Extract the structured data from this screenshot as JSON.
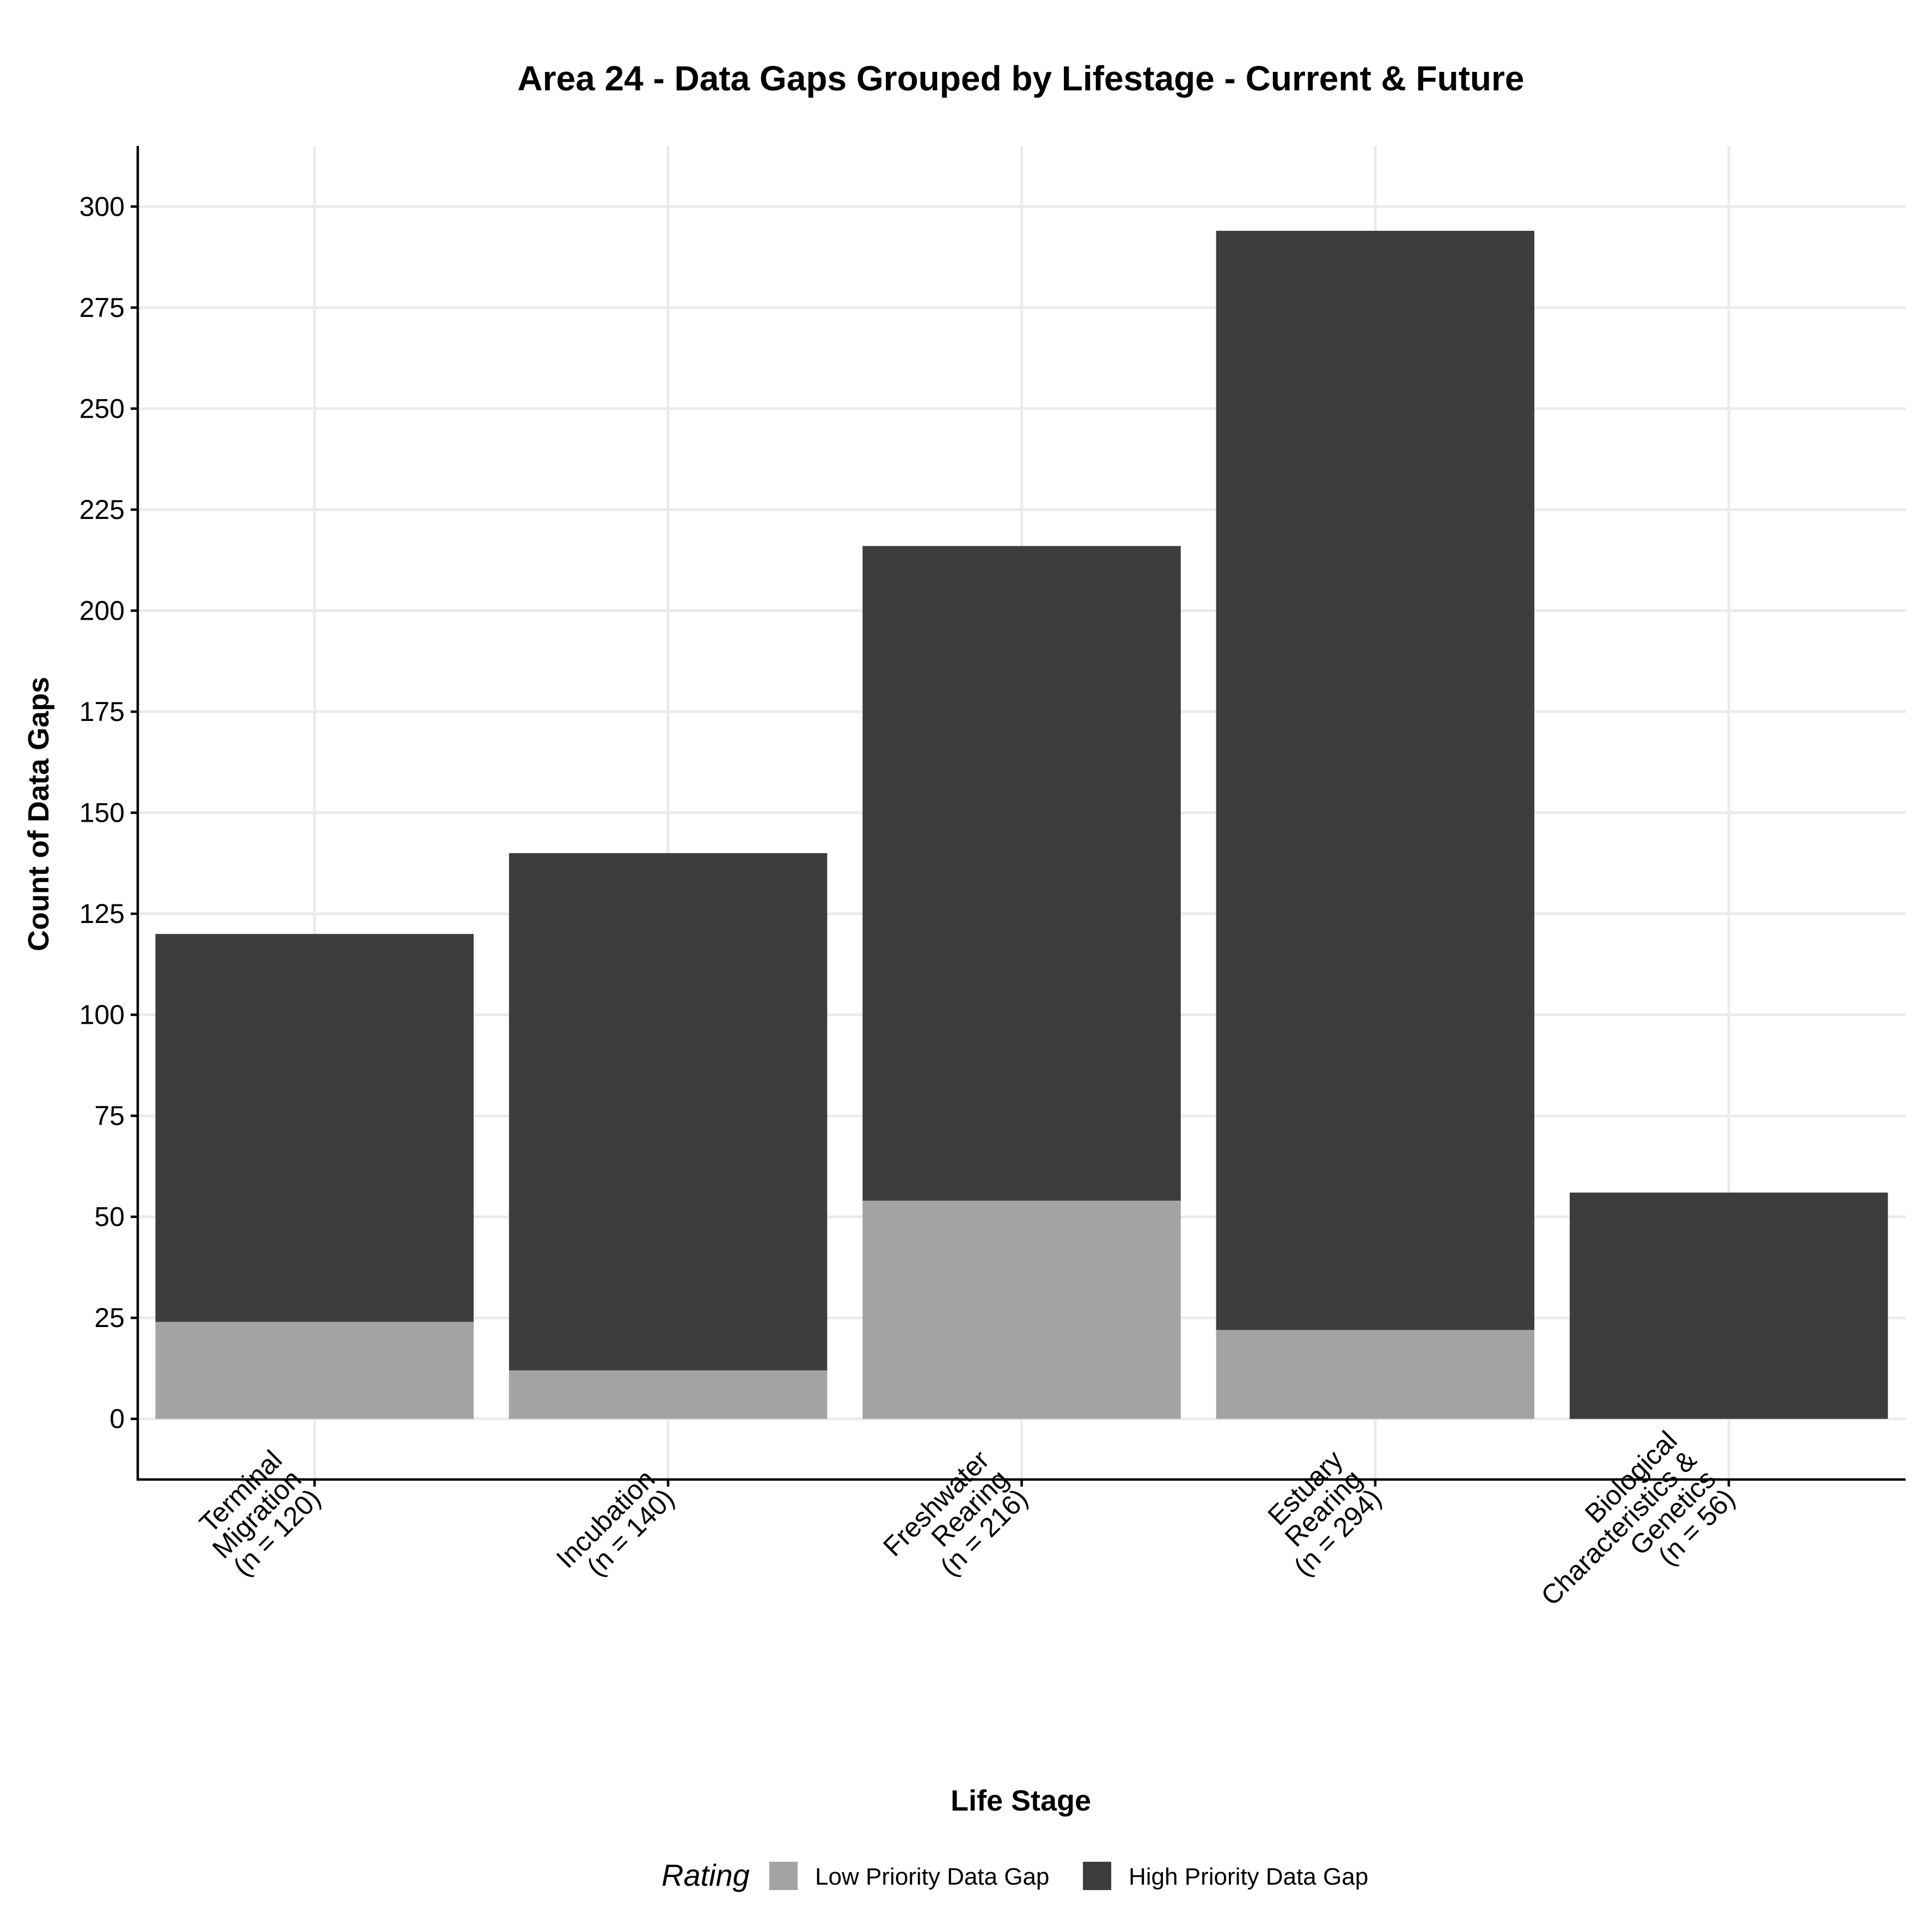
{
  "chart_data": {
    "type": "bar",
    "stacked": true,
    "title": "Area 24 - Data Gaps Grouped by Lifestage - Current & Future",
    "xlabel": "Life Stage",
    "ylabel": "Count of Data Gaps",
    "categories": [
      [
        "Terminal",
        "Migration",
        "(n = 120)"
      ],
      [
        "Incubation",
        "(n = 140)"
      ],
      [
        "Freshwater",
        "Rearing",
        "(n = 216)"
      ],
      [
        "Estuary",
        "Rearing",
        "(n = 294)"
      ],
      [
        "Biological",
        "Characteristics &",
        "Genetics",
        "(n = 56)"
      ]
    ],
    "series": [
      {
        "name": "Low Priority Data Gap",
        "color": "#a3a3a3",
        "values": [
          24,
          12,
          54,
          22,
          0
        ]
      },
      {
        "name": "High Priority Data Gap",
        "color": "#3d3d3d",
        "values": [
          96,
          128,
          162,
          272,
          56
        ]
      }
    ],
    "ylim": [
      -15,
      315
    ],
    "yticks": [
      0,
      25,
      50,
      75,
      100,
      125,
      150,
      175,
      200,
      225,
      250,
      275,
      300
    ],
    "grid": true,
    "legend": {
      "title": "Rating",
      "position": "bottom",
      "items": [
        "Low Priority Data Gap",
        "High Priority Data Gap"
      ]
    }
  }
}
